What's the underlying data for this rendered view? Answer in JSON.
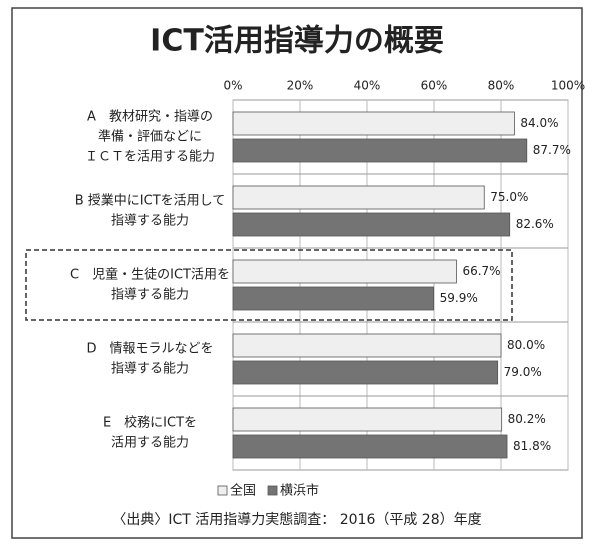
{
  "chart_data": {
    "type": "hbar",
    "title": "ICT活用指導力の概要",
    "categories": [
      [
        "A　教材研究・指導の",
        "準備・評価などに",
        "ＩＣＴを活用する能力"
      ],
      [
        "B 授業中にICTを活用して",
        "指導する能力"
      ],
      [
        "C　児童・生徒のICT活用を",
        "指導する能力"
      ],
      [
        "D　情報モラルなどを",
        "指導する能力"
      ],
      [
        "E　校務にICTを",
        "活用する能力"
      ]
    ],
    "series": [
      {
        "name": "全国",
        "color": "#efefef",
        "values": [
          84.0,
          75.0,
          66.7,
          80.0,
          80.2
        ],
        "value_labels": [
          "84.0%",
          "75.0%",
          "66.7%",
          "80.0%",
          "80.2%"
        ]
      },
      {
        "name": "横浜市",
        "color": "#747474",
        "values": [
          87.7,
          82.6,
          59.9,
          79.0,
          81.8
        ],
        "value_labels": [
          "87.7%",
          "82.6%",
          "59.9%",
          "79.0%",
          "81.8%"
        ]
      }
    ],
    "xlim": [
      0,
      100
    ],
    "xticks": [
      {
        "value": 0,
        "label": "0%"
      },
      {
        "value": 20,
        "label": "20%"
      },
      {
        "value": 40,
        "label": "40%"
      },
      {
        "value": 60,
        "label": "60%"
      },
      {
        "value": 80,
        "label": "80%"
      },
      {
        "value": 100,
        "label": "100%"
      }
    ],
    "grid": true,
    "highlight": 2,
    "source": "〈出典〉ICT 活用指導力実態調査： 2016（平成 28）年度"
  }
}
